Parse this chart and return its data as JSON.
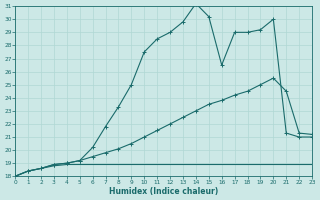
{
  "xlabel": "Humidex (Indice chaleur)",
  "bg_color": "#cce8e6",
  "line_color": "#1a6b6b",
  "grid_color": "#b0d8d4",
  "xlim": [
    0,
    23
  ],
  "ylim": [
    18,
    31
  ],
  "xticks": [
    0,
    1,
    2,
    3,
    4,
    5,
    6,
    7,
    8,
    9,
    10,
    11,
    12,
    13,
    14,
    15,
    16,
    17,
    18,
    19,
    20,
    21,
    22,
    23
  ],
  "yticks": [
    18,
    19,
    20,
    21,
    22,
    23,
    24,
    25,
    26,
    27,
    28,
    29,
    30,
    31
  ],
  "line_flat_x": [
    0,
    1,
    2,
    3,
    4,
    5,
    6,
    7,
    8,
    9,
    10,
    11,
    12,
    13,
    14,
    15,
    16,
    17,
    18,
    19,
    20,
    21,
    22,
    23
  ],
  "line_flat_y": [
    18.0,
    18.4,
    18.6,
    18.8,
    18.9,
    18.9,
    18.9,
    18.9,
    18.9,
    18.9,
    18.9,
    18.9,
    18.9,
    18.9,
    18.9,
    18.9,
    18.9,
    18.9,
    18.9,
    18.9,
    18.9,
    18.9,
    18.9,
    18.9
  ],
  "line_mid_x": [
    0,
    1,
    2,
    3,
    4,
    5,
    6,
    7,
    8,
    9,
    10,
    11,
    12,
    13,
    14,
    15,
    16,
    17,
    18,
    19,
    20,
    21,
    22,
    23
  ],
  "line_mid_y": [
    18.0,
    18.4,
    18.6,
    18.9,
    19.0,
    19.2,
    19.5,
    19.8,
    20.1,
    20.5,
    21.0,
    21.5,
    22.0,
    22.5,
    23.0,
    23.5,
    23.8,
    24.2,
    24.5,
    25.0,
    25.5,
    24.5,
    21.3,
    21.2
  ],
  "line_main_x": [
    0,
    1,
    2,
    3,
    4,
    5,
    6,
    7,
    8,
    9,
    10,
    11,
    12,
    13,
    14,
    15,
    16,
    17,
    18,
    19,
    20,
    21,
    22,
    23
  ],
  "line_main_y": [
    18.0,
    18.4,
    18.6,
    18.9,
    19.0,
    19.2,
    20.2,
    21.8,
    23.3,
    25.0,
    27.5,
    28.5,
    29.0,
    29.8,
    31.2,
    30.2,
    26.5,
    29.0,
    29.0,
    29.2,
    30.0,
    21.3,
    21.0,
    21.0
  ]
}
